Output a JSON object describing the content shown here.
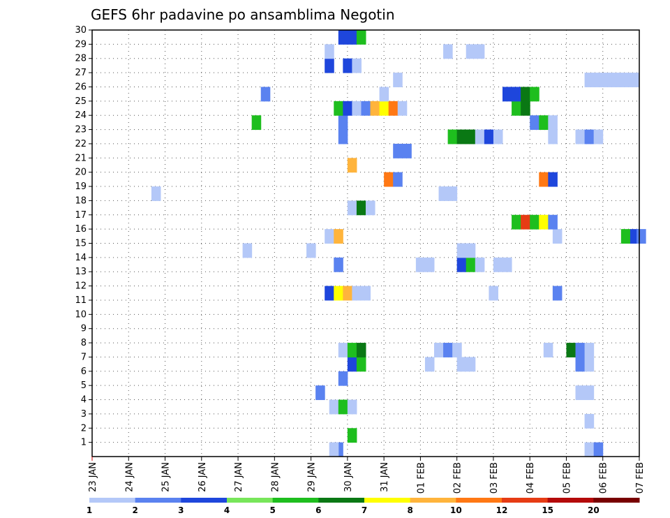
{
  "chart_data": {
    "type": "heatmap",
    "title": "GEFS 6hr padavine po ansamblima Negotin",
    "y_ticks": [
      "1",
      "2",
      "3",
      "4",
      "5",
      "6",
      "7",
      "8",
      "9",
      "10",
      "11",
      "12",
      "13",
      "14",
      "15",
      "16",
      "17",
      "18",
      "19",
      "20",
      "21",
      "22",
      "23",
      "24",
      "25",
      "26",
      "27",
      "28",
      "29",
      "30"
    ],
    "ylim": [
      0,
      30
    ],
    "x_tick_labels": [
      "23 JAN",
      "24 JAN",
      "25 JAN",
      "26 JAN",
      "27 JAN",
      "28 JAN",
      "29 JAN",
      "30 JAN",
      "31 JAN",
      "01 FEB",
      "02 FEB",
      "03 FEB",
      "04 FEB",
      "05 FEB",
      "06 FEB",
      "07 FEB"
    ],
    "time_unit": "6hr steps from 23 JAN",
    "xlim": [
      0,
      60
    ],
    "grid": true,
    "legend": {
      "placement": "bottom",
      "labels": [
        "1",
        "2",
        "3",
        "4",
        "5",
        "6",
        "7",
        "8",
        "10",
        "12",
        "15",
        "20"
      ],
      "colors": [
        "#b4c8f8",
        "#5a82f0",
        "#1e46dc",
        "#78e65a",
        "#1ebe1e",
        "#0a7814",
        "#ffff00",
        "#ffb43c",
        "#ff7814",
        "#e63c14",
        "#b40a0a",
        "#780000"
      ]
    },
    "cells": [
      {
        "t": 26.5,
        "m": 0,
        "v": 2
      },
      {
        "t": 26,
        "m": 0,
        "v": 1
      },
      {
        "t": 54,
        "m": 0,
        "v": 1
      },
      {
        "t": 55,
        "m": 0,
        "v": 2
      },
      {
        "t": 28,
        "m": 1,
        "v": 5
      },
      {
        "t": 54,
        "m": 2,
        "v": 1
      },
      {
        "t": 26,
        "m": 3,
        "v": 1
      },
      {
        "t": 27,
        "m": 3,
        "v": 5
      },
      {
        "t": 28,
        "m": 3,
        "v": 1
      },
      {
        "t": 24.5,
        "m": 4,
        "v": 2
      },
      {
        "t": 53,
        "m": 4,
        "v": 1
      },
      {
        "t": 54,
        "m": 4,
        "v": 1
      },
      {
        "t": 27,
        "m": 5,
        "v": 2
      },
      {
        "t": 28,
        "m": 6,
        "v": 3
      },
      {
        "t": 29,
        "m": 6,
        "v": 5
      },
      {
        "t": 36.5,
        "m": 6,
        "v": 1
      },
      {
        "t": 40,
        "m": 6,
        "v": 1
      },
      {
        "t": 41,
        "m": 6,
        "v": 1
      },
      {
        "t": 53,
        "m": 6,
        "v": 2
      },
      {
        "t": 54,
        "m": 6,
        "v": 1
      },
      {
        "t": 27,
        "m": 7,
        "v": 1
      },
      {
        "t": 28,
        "m": 7,
        "v": 5
      },
      {
        "t": 29,
        "m": 7,
        "v": 6
      },
      {
        "t": 37.5,
        "m": 7,
        "v": 1
      },
      {
        "t": 38.5,
        "m": 7,
        "v": 2
      },
      {
        "t": 39.5,
        "m": 7,
        "v": 1
      },
      {
        "t": 49.5,
        "m": 7,
        "v": 1
      },
      {
        "t": 52,
        "m": 7,
        "v": 6
      },
      {
        "t": 53,
        "m": 7,
        "v": 2
      },
      {
        "t": 54,
        "m": 7,
        "v": 1
      },
      {
        "t": 25.5,
        "m": 11,
        "v": 3
      },
      {
        "t": 26.5,
        "m": 11,
        "v": 7
      },
      {
        "t": 27.5,
        "m": 11,
        "v": 8
      },
      {
        "t": 28.5,
        "m": 11,
        "v": 1
      },
      {
        "t": 29.5,
        "m": 11,
        "v": 1
      },
      {
        "t": 43.5,
        "m": 11,
        "v": 1
      },
      {
        "t": 50.5,
        "m": 11,
        "v": 2
      },
      {
        "t": 26.5,
        "m": 13,
        "v": 2
      },
      {
        "t": 35.5,
        "m": 13,
        "v": 1
      },
      {
        "t": 36.5,
        "m": 13,
        "v": 1
      },
      {
        "t": 40,
        "m": 13,
        "v": 3
      },
      {
        "t": 41,
        "m": 13,
        "v": 5
      },
      {
        "t": 42,
        "m": 13,
        "v": 1
      },
      {
        "t": 44,
        "m": 13,
        "v": 1
      },
      {
        "t": 45,
        "m": 13,
        "v": 1
      },
      {
        "t": 16.5,
        "m": 14,
        "v": 1
      },
      {
        "t": 23.5,
        "m": 14,
        "v": 1
      },
      {
        "t": 40,
        "m": 14,
        "v": 1
      },
      {
        "t": 41,
        "m": 14,
        "v": 1
      },
      {
        "t": 25.5,
        "m": 15,
        "v": 1
      },
      {
        "t": 26.5,
        "m": 15,
        "v": 8
      },
      {
        "t": 50.5,
        "m": 15,
        "v": 1
      },
      {
        "t": 58,
        "m": 15,
        "v": 5
      },
      {
        "t": 59,
        "m": 15,
        "v": 3
      },
      {
        "t": 59.7,
        "m": 15,
        "v": 2
      },
      {
        "t": 46,
        "m": 16,
        "v": 5
      },
      {
        "t": 47,
        "m": 16,
        "v": 12
      },
      {
        "t": 48,
        "m": 16,
        "v": 5
      },
      {
        "t": 49,
        "m": 16,
        "v": 7
      },
      {
        "t": 50,
        "m": 16,
        "v": 2
      },
      {
        "t": 28,
        "m": 17,
        "v": 1
      },
      {
        "t": 29,
        "m": 17,
        "v": 6
      },
      {
        "t": 30,
        "m": 17,
        "v": 1
      },
      {
        "t": 6.5,
        "m": 18,
        "v": 1
      },
      {
        "t": 38,
        "m": 18,
        "v": 1
      },
      {
        "t": 39,
        "m": 18,
        "v": 1
      },
      {
        "t": 49,
        "m": 19,
        "v": 10
      },
      {
        "t": 50,
        "m": 19,
        "v": 3
      },
      {
        "t": 32,
        "m": 19,
        "v": 10
      },
      {
        "t": 33,
        "m": 19,
        "v": 2
      },
      {
        "t": 28,
        "m": 20,
        "v": 8
      },
      {
        "t": 33,
        "m": 21,
        "v": 2
      },
      {
        "t": 34,
        "m": 21,
        "v": 2
      },
      {
        "t": 39,
        "m": 22,
        "v": 5
      },
      {
        "t": 40,
        "m": 22,
        "v": 6
      },
      {
        "t": 41,
        "m": 22,
        "v": 6
      },
      {
        "t": 42,
        "m": 22,
        "v": 1
      },
      {
        "t": 43,
        "m": 22,
        "v": 3
      },
      {
        "t": 44,
        "m": 22,
        "v": 1
      },
      {
        "t": 50,
        "m": 22,
        "v": 1
      },
      {
        "t": 53,
        "m": 22,
        "v": 1
      },
      {
        "t": 54,
        "m": 22,
        "v": 2
      },
      {
        "t": 55,
        "m": 22,
        "v": 1
      },
      {
        "t": 27,
        "m": 22,
        "v": 2
      },
      {
        "t": 17.5,
        "m": 23,
        "v": 5
      },
      {
        "t": 27,
        "m": 23,
        "v": 2
      },
      {
        "t": 48,
        "m": 23,
        "v": 2
      },
      {
        "t": 49,
        "m": 23,
        "v": 5
      },
      {
        "t": 50,
        "m": 23,
        "v": 1
      },
      {
        "t": 26.5,
        "m": 24,
        "v": 5
      },
      {
        "t": 27.5,
        "m": 24,
        "v": 3
      },
      {
        "t": 28.5,
        "m": 24,
        "v": 1
      },
      {
        "t": 29.5,
        "m": 24,
        "v": 2
      },
      {
        "t": 30.5,
        "m": 24,
        "v": 8
      },
      {
        "t": 31.5,
        "m": 24,
        "v": 7
      },
      {
        "t": 32.5,
        "m": 24,
        "v": 10
      },
      {
        "t": 33.5,
        "m": 24,
        "v": 1
      },
      {
        "t": 46,
        "m": 24,
        "v": 5
      },
      {
        "t": 47,
        "m": 24,
        "v": 6
      },
      {
        "t": 18.5,
        "m": 25,
        "v": 2
      },
      {
        "t": 31.5,
        "m": 25,
        "v": 1
      },
      {
        "t": 45,
        "m": 25,
        "v": 3
      },
      {
        "t": 46,
        "m": 25,
        "v": 3
      },
      {
        "t": 47,
        "m": 25,
        "v": 6
      },
      {
        "t": 48,
        "m": 25,
        "v": 5
      },
      {
        "t": 33,
        "m": 26,
        "v": 1
      },
      {
        "t": 54,
        "m": 26,
        "v": 1
      },
      {
        "t": 55,
        "m": 26,
        "v": 1
      },
      {
        "t": 56,
        "m": 26,
        "v": 1
      },
      {
        "t": 57,
        "m": 26,
        "v": 1
      },
      {
        "t": 58,
        "m": 26,
        "v": 1
      },
      {
        "t": 59,
        "m": 26,
        "v": 1
      },
      {
        "t": 25.5,
        "m": 27,
        "v": 3
      },
      {
        "t": 27.5,
        "m": 27,
        "v": 3
      },
      {
        "t": 28.5,
        "m": 27,
        "v": 1
      },
      {
        "t": 25.5,
        "m": 28,
        "v": 1
      },
      {
        "t": 38.5,
        "m": 28,
        "v": 1
      },
      {
        "t": 41,
        "m": 28,
        "v": 1
      },
      {
        "t": 42,
        "m": 28,
        "v": 1
      },
      {
        "t": 27,
        "m": 29,
        "v": 3
      },
      {
        "t": 28,
        "m": 29,
        "v": 3
      },
      {
        "t": 29,
        "m": 29,
        "v": 5
      }
    ]
  }
}
